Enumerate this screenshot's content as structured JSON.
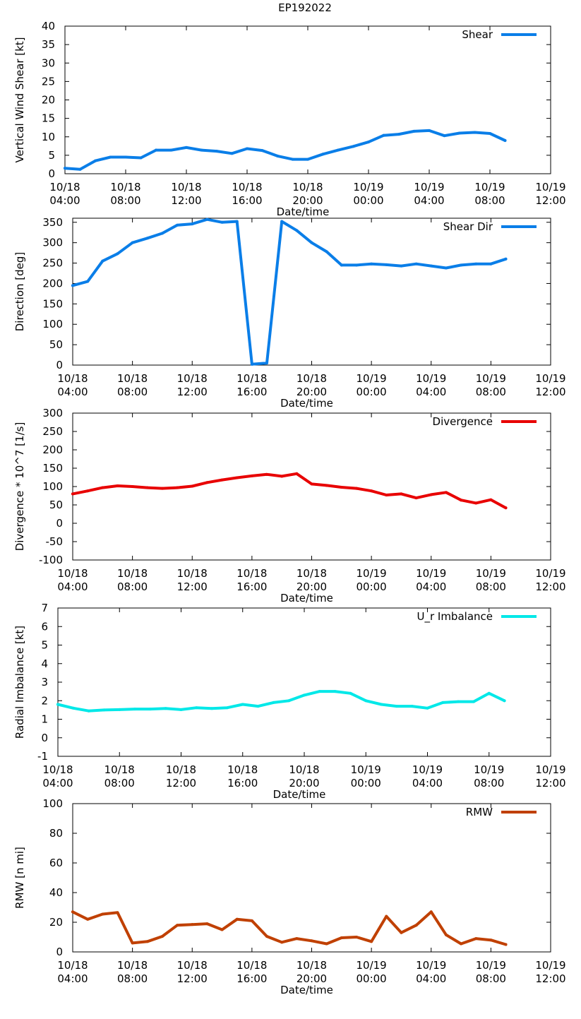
{
  "figure_title": "EP192022",
  "chart_data": [
    {
      "type": "line",
      "ylabel": "Vertical Wind Shear [kt]",
      "xlabel": "Date/time",
      "ylim": [
        0,
        40
      ],
      "yticks": [
        0,
        5,
        10,
        15,
        20,
        25,
        30,
        35,
        40
      ],
      "xlim": [
        0,
        32
      ],
      "xticks": [
        {
          "t": 0,
          "date": "10/18",
          "time": "04:00"
        },
        {
          "t": 4,
          "date": "10/18",
          "time": "08:00"
        },
        {
          "t": 8,
          "date": "10/18",
          "time": "12:00"
        },
        {
          "t": 12,
          "date": "10/18",
          "time": "16:00"
        },
        {
          "t": 16,
          "date": "10/18",
          "time": "20:00"
        },
        {
          "t": 20,
          "date": "10/19",
          "time": "00:00"
        },
        {
          "t": 24,
          "date": "10/19",
          "time": "04:00"
        },
        {
          "t": 28,
          "date": "10/19",
          "time": "08:00"
        },
        {
          "t": 32,
          "date": "10/19",
          "time": "12:00"
        }
      ],
      "series": [
        {
          "name": "Shear",
          "color": "#0a7ee8",
          "x": [
            0,
            1,
            2,
            3,
            4,
            5,
            6,
            7,
            8,
            9,
            10,
            11,
            12,
            13,
            14,
            15,
            16,
            17,
            18,
            19,
            20,
            21,
            22,
            23,
            24,
            25,
            26,
            27,
            28,
            29
          ],
          "values": [
            1.5,
            1.2,
            3.5,
            4.5,
            4.5,
            4.3,
            6.4,
            6.4,
            7.1,
            6.4,
            6.1,
            5.5,
            6.8,
            6.3,
            4.8,
            3.9,
            3.9,
            5.3,
            6.4,
            7.4,
            8.6,
            10.4,
            10.7,
            11.5,
            11.7,
            10.3,
            11.0,
            11.2,
            10.9,
            9.0
          ]
        }
      ]
    },
    {
      "type": "line",
      "ylabel": "Direction [deg]",
      "xlabel": "Date/time",
      "ylim": [
        0,
        360
      ],
      "yticks": [
        0,
        50,
        100,
        150,
        200,
        250,
        300,
        350
      ],
      "xlim": [
        0,
        32
      ],
      "xticks": [
        {
          "t": 0,
          "date": "10/18",
          "time": "04:00"
        },
        {
          "t": 4,
          "date": "10/18",
          "time": "08:00"
        },
        {
          "t": 8,
          "date": "10/18",
          "time": "12:00"
        },
        {
          "t": 12,
          "date": "10/18",
          "time": "16:00"
        },
        {
          "t": 16,
          "date": "10/18",
          "time": "20:00"
        },
        {
          "t": 20,
          "date": "10/19",
          "time": "00:00"
        },
        {
          "t": 24,
          "date": "10/19",
          "time": "04:00"
        },
        {
          "t": 28,
          "date": "10/19",
          "time": "08:00"
        },
        {
          "t": 32,
          "date": "10/19",
          "time": "12:00"
        }
      ],
      "series": [
        {
          "name": "Shear Dir",
          "color": "#0a7ee8",
          "x": [
            0,
            1,
            2,
            3,
            4,
            5,
            6,
            7,
            8,
            9,
            10,
            11,
            12,
            13,
            14,
            15,
            16,
            17,
            18,
            19,
            20,
            21,
            22,
            23,
            24,
            25,
            26,
            27,
            28,
            29
          ],
          "values": [
            195,
            205,
            255,
            273,
            300,
            311,
            323,
            343,
            346,
            357,
            350,
            352,
            2,
            5,
            352,
            330,
            300,
            278,
            245,
            245,
            248,
            246,
            243,
            248,
            243,
            238,
            245,
            248,
            248,
            260
          ]
        }
      ]
    },
    {
      "type": "line",
      "ylabel": "Divergence * 10^7 [1/s]",
      "xlabel": "Date/time",
      "ylim": [
        -100,
        300
      ],
      "yticks": [
        -100,
        -50,
        0,
        50,
        100,
        150,
        200,
        250,
        300
      ],
      "xlim": [
        0,
        32
      ],
      "xticks": [
        {
          "t": 0,
          "date": "10/18",
          "time": "04:00"
        },
        {
          "t": 4,
          "date": "10/18",
          "time": "08:00"
        },
        {
          "t": 8,
          "date": "10/18",
          "time": "12:00"
        },
        {
          "t": 12,
          "date": "10/18",
          "time": "16:00"
        },
        {
          "t": 16,
          "date": "10/18",
          "time": "20:00"
        },
        {
          "t": 20,
          "date": "10/19",
          "time": "00:00"
        },
        {
          "t": 24,
          "date": "10/19",
          "time": "04:00"
        },
        {
          "t": 28,
          "date": "10/19",
          "time": "08:00"
        },
        {
          "t": 32,
          "date": "10/19",
          "time": "12:00"
        }
      ],
      "series": [
        {
          "name": "Divergence",
          "color": "#e80000",
          "x": [
            0,
            1,
            2,
            3,
            4,
            5,
            6,
            7,
            8,
            9,
            10,
            11,
            12,
            13,
            14,
            15,
            16,
            17,
            18,
            19,
            20,
            21,
            22,
            23,
            24,
            25,
            26,
            27,
            28,
            29
          ],
          "values": [
            80,
            88,
            97,
            102,
            100,
            97,
            95,
            97,
            101,
            111,
            118,
            124,
            129,
            133,
            128,
            135,
            107,
            103,
            98,
            95,
            88,
            77,
            80,
            69,
            78,
            84,
            63,
            55,
            64,
            42
          ]
        }
      ]
    },
    {
      "type": "line",
      "ylabel": "Radial Imbalance [kt]",
      "xlabel": "Date/time",
      "ylim": [
        -1,
        7
      ],
      "yticks": [
        -1,
        0,
        1,
        2,
        3,
        4,
        5,
        6,
        7
      ],
      "xlim": [
        0,
        32
      ],
      "xticks": [
        {
          "t": 0,
          "date": "10/18",
          "time": "04:00"
        },
        {
          "t": 4,
          "date": "10/18",
          "time": "08:00"
        },
        {
          "t": 8,
          "date": "10/18",
          "time": "12:00"
        },
        {
          "t": 12,
          "date": "10/18",
          "time": "16:00"
        },
        {
          "t": 16,
          "date": "10/18",
          "time": "20:00"
        },
        {
          "t": 20,
          "date": "10/19",
          "time": "00:00"
        },
        {
          "t": 24,
          "date": "10/19",
          "time": "04:00"
        },
        {
          "t": 28,
          "date": "10/19",
          "time": "08:00"
        },
        {
          "t": 32,
          "date": "10/19",
          "time": "12:00"
        }
      ],
      "series": [
        {
          "name": "U_r Imbalance",
          "color": "#00e8e8",
          "x": [
            0,
            1,
            2,
            3,
            4,
            5,
            6,
            7,
            8,
            9,
            10,
            11,
            12,
            13,
            14,
            15,
            16,
            17,
            18,
            19,
            20,
            21,
            22,
            23,
            24,
            25,
            26,
            27,
            28,
            29
          ],
          "values": [
            1.8,
            1.6,
            1.45,
            1.5,
            1.52,
            1.55,
            1.55,
            1.58,
            1.52,
            1.62,
            1.58,
            1.62,
            1.8,
            1.7,
            1.9,
            2.0,
            2.3,
            2.5,
            2.5,
            2.4,
            2.0,
            1.8,
            1.7,
            1.7,
            1.6,
            1.9,
            1.95,
            1.95,
            2.4,
            2.0
          ]
        }
      ]
    },
    {
      "type": "line",
      "ylabel": "RMW [n mi]",
      "xlabel": "Date/time",
      "ylim": [
        0,
        100
      ],
      "yticks": [
        0,
        20,
        40,
        60,
        80,
        100
      ],
      "xlim": [
        0,
        32
      ],
      "xticks": [
        {
          "t": 0,
          "date": "10/18",
          "time": "04:00"
        },
        {
          "t": 4,
          "date": "10/18",
          "time": "08:00"
        },
        {
          "t": 8,
          "date": "10/18",
          "time": "12:00"
        },
        {
          "t": 12,
          "date": "10/18",
          "time": "16:00"
        },
        {
          "t": 16,
          "date": "10/18",
          "time": "20:00"
        },
        {
          "t": 20,
          "date": "10/19",
          "time": "00:00"
        },
        {
          "t": 24,
          "date": "10/19",
          "time": "04:00"
        },
        {
          "t": 28,
          "date": "10/19",
          "time": "08:00"
        },
        {
          "t": 32,
          "date": "10/19",
          "time": "12:00"
        }
      ],
      "series": [
        {
          "name": "RMW",
          "color": "#c04000",
          "x": [
            0,
            1,
            2,
            3,
            4,
            5,
            6,
            7,
            8,
            9,
            10,
            11,
            12,
            13,
            14,
            15,
            16,
            17,
            18,
            19,
            20,
            21,
            22,
            23,
            24,
            25,
            26,
            27,
            28,
            29
          ],
          "values": [
            27,
            22,
            25.5,
            26.5,
            6,
            7,
            10.5,
            18,
            18.5,
            19,
            15,
            22,
            21,
            10.5,
            6.5,
            9,
            7.5,
            5.5,
            9.5,
            10,
            7,
            24,
            13,
            18,
            27,
            11.5,
            5.5,
            9,
            8,
            5
          ]
        }
      ]
    }
  ]
}
